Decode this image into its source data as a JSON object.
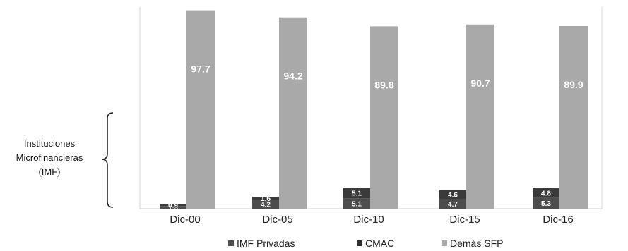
{
  "chart_data": {
    "type": "bar",
    "stacked_groups": true,
    "categories": [
      "Dic-00",
      "Dic-05",
      "Dic-10",
      "Dic-15",
      "Dic-16"
    ],
    "series": [
      {
        "name": "IMF Privadas",
        "values": [
          1.3,
          4.2,
          5.1,
          4.7,
          5.3
        ],
        "labels": [
          "1.3",
          "4.2",
          "5.1",
          "4.7",
          "5.3"
        ],
        "color": "#4d4d4d"
      },
      {
        "name": "CMAC",
        "values": [
          0.9,
          1.6,
          5.1,
          4.6,
          4.8
        ],
        "labels": [
          "0.9",
          "1.6",
          "5.1",
          "4.6",
          "4.8"
        ],
        "color": "#3a3a3a"
      },
      {
        "name": "Demás SFP",
        "values": [
          97.7,
          94.2,
          89.8,
          90.7,
          89.9
        ],
        "labels": [
          "97.7",
          "94.2",
          "89.8",
          "90.7",
          "89.9"
        ],
        "color": "#a9a9a9"
      }
    ],
    "ylim": [
      0,
      100
    ],
    "grid": false,
    "legend_position": "bottom",
    "annotation": {
      "text_lines": [
        "Instituciones",
        "Microfinancieras",
        "(IMF)"
      ]
    }
  }
}
